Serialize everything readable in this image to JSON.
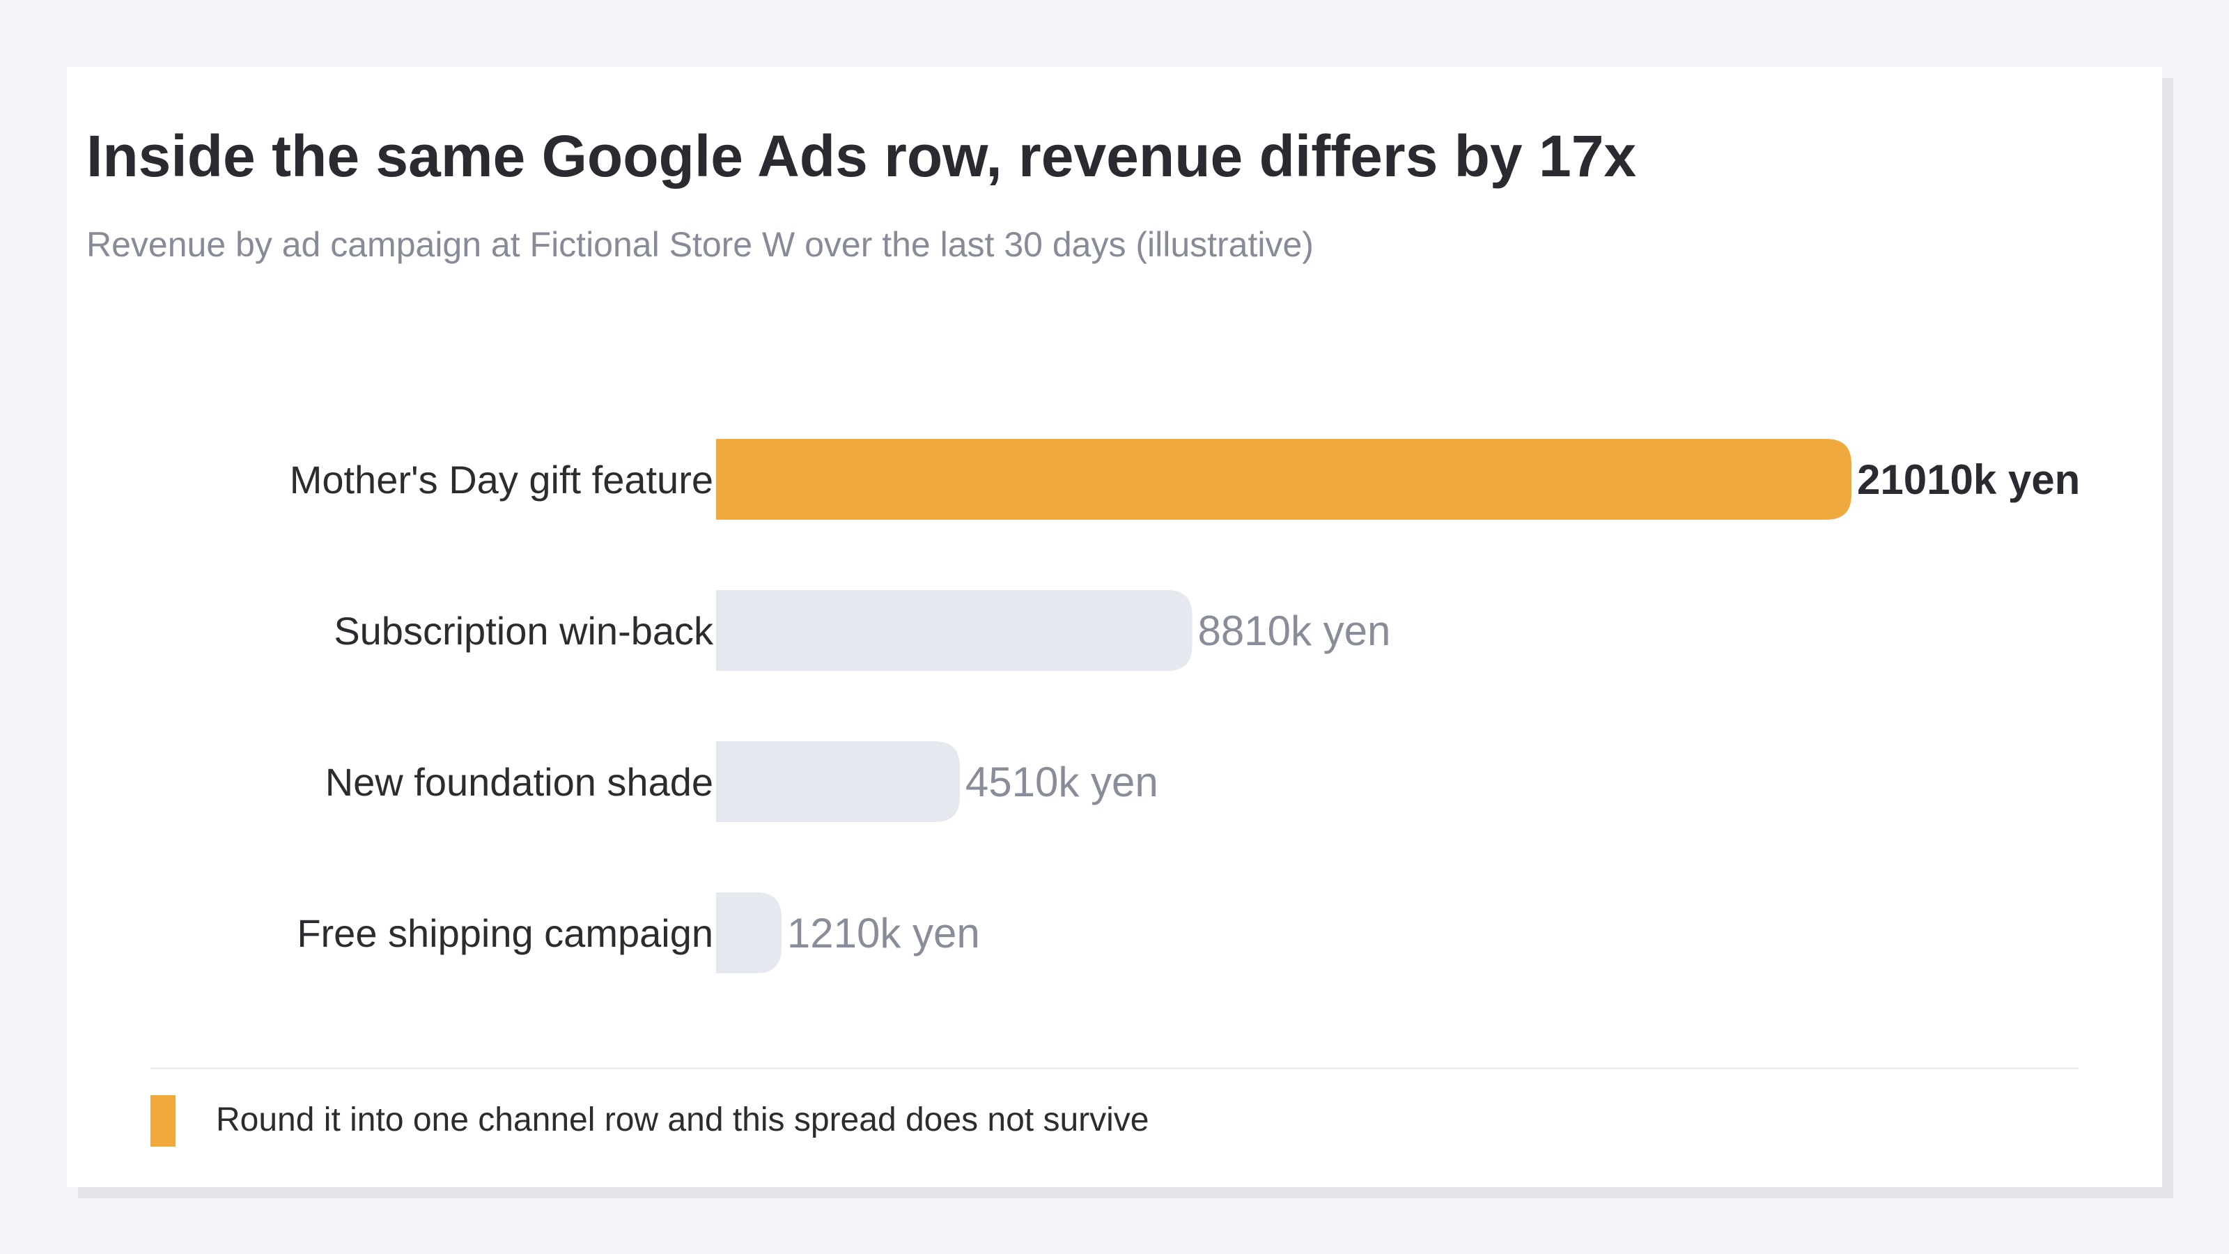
{
  "title": "Inside the same Google Ads row, revenue differs by 17x",
  "subtitle": "Revenue by ad campaign at Fictional Store W over the last 30 days (illustrative)",
  "legend": {
    "text": "Round it into one channel row and this spread does not survive",
    "color": "#f0a93d"
  },
  "colors": {
    "highlight": "#f0a93d",
    "muted": "#e6e8f0"
  },
  "chart_data": {
    "type": "bar",
    "orientation": "horizontal",
    "title": "Inside the same Google Ads row, revenue differs by 17x",
    "subtitle": "Revenue by ad campaign at Fictional Store W over the last 30 days (illustrative)",
    "categories": [
      "Mother's Day gift feature",
      "Subscription win-back",
      "New foundation shade",
      "Free shipping campaign"
    ],
    "values": [
      21010,
      8810,
      4510,
      1210
    ],
    "value_labels": [
      "21010k yen",
      "8810k yen",
      "4510k yen",
      "1210k yen"
    ],
    "unit": "k yen",
    "highlighted_index": 0,
    "xlim": [
      0,
      21010
    ],
    "grid": false,
    "legend_position": "bottom-left"
  }
}
